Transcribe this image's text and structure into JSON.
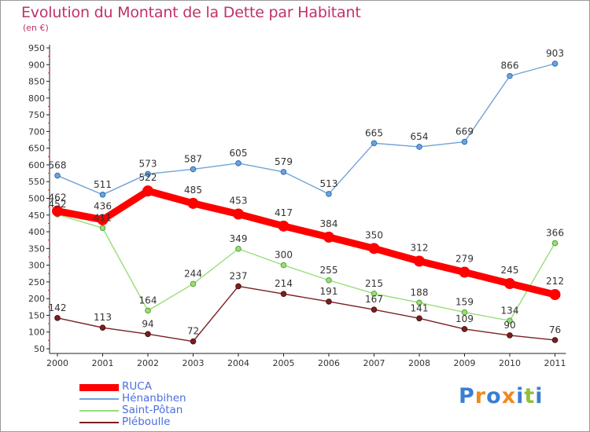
{
  "title": "Evolution du Montant de la Dette par Habitant",
  "subtitle": "(en €)",
  "chart_data": {
    "type": "line",
    "title": "Evolution du Montant de la Dette par Habitant",
    "ylabel": "(en €)",
    "x": [
      "2000",
      "2001",
      "2002",
      "2003",
      "2004",
      "2005",
      "2006",
      "2007",
      "2008",
      "2009",
      "2010",
      "2011"
    ],
    "ylim": [
      50,
      950
    ],
    "yticks": [
      50,
      100,
      150,
      200,
      250,
      300,
      350,
      400,
      450,
      500,
      550,
      600,
      650,
      700,
      750,
      800,
      850,
      900,
      950
    ],
    "grid": false,
    "legend_position": "bottom-left",
    "series": [
      {
        "name": "RUCA",
        "color": "#ff0000",
        "values": [
          462,
          436,
          522,
          485,
          453,
          417,
          384,
          350,
          312,
          279,
          245,
          212
        ],
        "labels": [
          "462",
          "436",
          "522",
          "485",
          "453",
          "417",
          "384",
          "350",
          "312",
          "279",
          "245",
          "212"
        ]
      },
      {
        "name": "Hénanbihen",
        "color": "#6ea3d8",
        "values": [
          568,
          511,
          573,
          587,
          605,
          579,
          513,
          665,
          654,
          669,
          866,
          903
        ],
        "labels": [
          "568",
          "511",
          "573",
          "587",
          "605",
          "579",
          "513",
          "665",
          "654",
          "669",
          "866",
          "903"
        ]
      },
      {
        "name": "Saint-Pôtan",
        "color": "#99dd77",
        "values": [
          452,
          411,
          164,
          244,
          349,
          300,
          255,
          215,
          188,
          159,
          134,
          366
        ],
        "labels": [
          "452",
          "411",
          "164",
          "244",
          "349",
          "300",
          "255",
          "215",
          "188",
          "159",
          "134",
          "366"
        ]
      },
      {
        "name": "Pléboulle",
        "color": "#7a1f1f",
        "values": [
          142,
          113,
          94,
          72,
          237,
          214,
          191,
          167,
          141,
          109,
          90,
          76
        ],
        "labels": [
          "142",
          "113",
          "94",
          "72",
          "237",
          "214",
          "191",
          "167",
          "141",
          "109",
          "90",
          "76"
        ]
      }
    ]
  },
  "legend": [
    "RUCA",
    "Hénanbihen",
    "Saint-Pôtan",
    "Pléboulle"
  ],
  "logo": {
    "letters": [
      "P",
      "r",
      "o",
      "x",
      "i",
      "t",
      "i"
    ],
    "colors": [
      "#3a7fd0",
      "#f08a1e",
      "#3a7fd0",
      "#f08a1e",
      "#3a7fd0",
      "#8fc23a",
      "#3a7fd0"
    ]
  }
}
